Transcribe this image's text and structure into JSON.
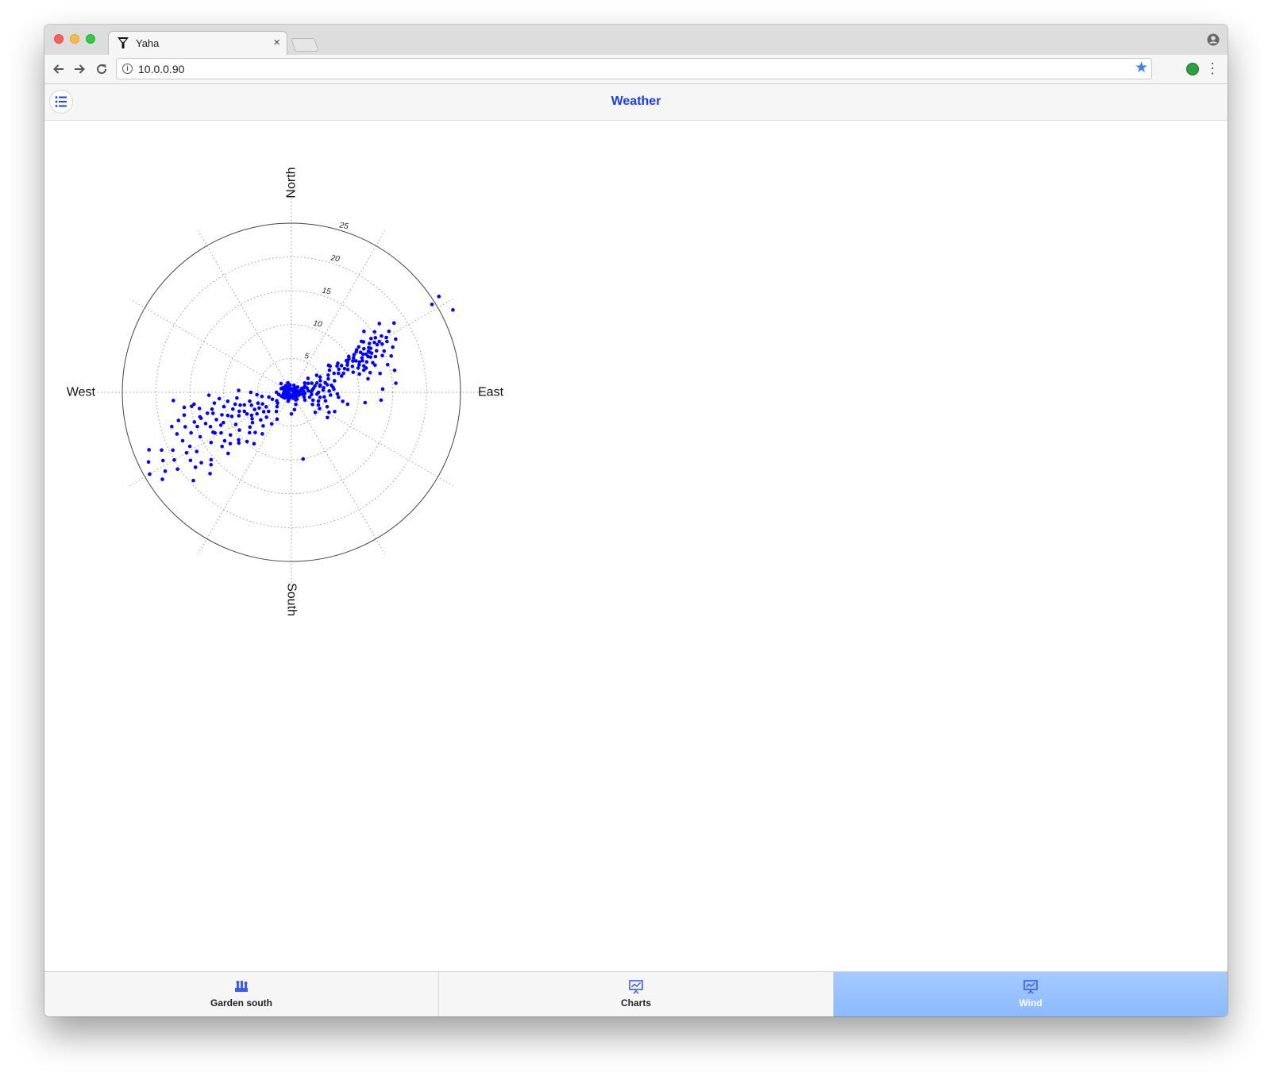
{
  "browser": {
    "tab_title": "Yaha",
    "tab_close": "×",
    "url": "10.0.0.90"
  },
  "app": {
    "title": "Weather",
    "accent_color": "#1a3ff0",
    "active_tab_color": "#99c3ff"
  },
  "bottom_tabs": [
    {
      "label": "Garden south",
      "icon": "garden-icon",
      "active": false
    },
    {
      "label": "Charts",
      "icon": "presentation-chart-icon",
      "active": false
    },
    {
      "label": "Wind",
      "icon": "presentation-chart-icon",
      "active": true
    }
  ],
  "chart_data": {
    "type": "scatter",
    "coordinate_system": "polar",
    "angle_unit": "degrees (direction the wind blows from, clockwise from North)",
    "compass_labels": [
      "North",
      "East",
      "South",
      "West"
    ],
    "radial_ticks": [
      5,
      10,
      15,
      20,
      25
    ],
    "radial_range": [
      0,
      25
    ],
    "angular_grid_step_deg": 30,
    "grid": "dotted",
    "point_color": "#0000ff",
    "points": [
      [
        58,
        24.5
      ],
      [
        57,
        26
      ],
      [
        63,
        26.8
      ],
      [
        58,
        17
      ],
      [
        52,
        16.5
      ],
      [
        60,
        15
      ],
      [
        62,
        16
      ],
      [
        64,
        14
      ],
      [
        50,
        14
      ],
      [
        55,
        13
      ],
      [
        65,
        12.5
      ],
      [
        68,
        14.5
      ],
      [
        59,
        14.3
      ],
      [
        61,
        13.4
      ],
      [
        56,
        12
      ],
      [
        57,
        11.5
      ],
      [
        63,
        13
      ],
      [
        66,
        15
      ],
      [
        62,
        12
      ],
      [
        59,
        12.5
      ],
      [
        60,
        11.8
      ],
      [
        61,
        14.5
      ],
      [
        63,
        12.4
      ],
      [
        64,
        11.6
      ],
      [
        67,
        13.5
      ],
      [
        58,
        13.6
      ],
      [
        57,
        14.8
      ],
      [
        54,
        12.8
      ],
      [
        56,
        14.2
      ],
      [
        60,
        13.2
      ],
      [
        62,
        12.9
      ],
      [
        64,
        13.2
      ],
      [
        66,
        12.8
      ],
      [
        59,
        10.8
      ],
      [
        61,
        10.5
      ],
      [
        63,
        10.2
      ],
      [
        66,
        11
      ],
      [
        68,
        12
      ],
      [
        70,
        12.8
      ],
      [
        72,
        11.6
      ],
      [
        58,
        10
      ],
      [
        60,
        9.8
      ],
      [
        62,
        9.4
      ],
      [
        64,
        9.2
      ],
      [
        67,
        9.8
      ],
      [
        70,
        10.5
      ],
      [
        73,
        11.2
      ],
      [
        76,
        12
      ],
      [
        78,
        13.4
      ],
      [
        66,
        8.6
      ],
      [
        68,
        9
      ],
      [
        72,
        9.6
      ],
      [
        75,
        10.4
      ],
      [
        80,
        11.5
      ],
      [
        85,
        15.5
      ],
      [
        88,
        13.5
      ],
      [
        95,
        13.3
      ],
      [
        98,
        11
      ],
      [
        100,
        7.7
      ],
      [
        102,
        8.5
      ],
      [
        96,
        7
      ],
      [
        92,
        6.8
      ],
      [
        94,
        5.8
      ],
      [
        86,
        6.3
      ],
      [
        88,
        5.6
      ],
      [
        83,
        6.2
      ],
      [
        80,
        6
      ],
      [
        78,
        5.4
      ],
      [
        75,
        6.6
      ],
      [
        72,
        7.8
      ],
      [
        70,
        8.2
      ],
      [
        68,
        7.5
      ],
      [
        66,
        6.9
      ],
      [
        64,
        7.8
      ],
      [
        62,
        8.4
      ],
      [
        60,
        7.8
      ],
      [
        58,
        8.1
      ],
      [
        56,
        6.9
      ],
      [
        54,
        6.8
      ],
      [
        60,
        6.5
      ],
      [
        65,
        6
      ],
      [
        70,
        5.8
      ],
      [
        74,
        5.2
      ],
      [
        78,
        4.3
      ],
      [
        82,
        4.8
      ],
      [
        86,
        4.7
      ],
      [
        90,
        4
      ],
      [
        94,
        3.8
      ],
      [
        96,
        3
      ],
      [
        100,
        4.3
      ],
      [
        105,
        2.8
      ],
      [
        110,
        3.4
      ],
      [
        120,
        3.6
      ],
      [
        120,
        4.8
      ],
      [
        115,
        4.4
      ],
      [
        85,
        2.5
      ],
      [
        80,
        3.3
      ],
      [
        75,
        3.6
      ],
      [
        70,
        4
      ],
      [
        66,
        3.3
      ],
      [
        62,
        2.8
      ],
      [
        55,
        2.4
      ],
      [
        50,
        3.2
      ],
      [
        70,
        2
      ],
      [
        80,
        1.4
      ],
      [
        90,
        1.2
      ],
      [
        95,
        2
      ],
      [
        100,
        1.6
      ],
      [
        110,
        2
      ],
      [
        120,
        2.3
      ],
      [
        100,
        0.8
      ],
      [
        110,
        0.9
      ],
      [
        120,
        1
      ],
      [
        150,
        1.3
      ],
      [
        160,
        1.9
      ],
      [
        170,
        2.6
      ],
      [
        180,
        3.2
      ],
      [
        170,
        10
      ],
      [
        240,
        12
      ],
      [
        245,
        11.5
      ],
      [
        250,
        10
      ],
      [
        246,
        8.5
      ],
      [
        248,
        9.5
      ],
      [
        252,
        10.8
      ],
      [
        255,
        12
      ],
      [
        240,
        9.5
      ],
      [
        243,
        13
      ],
      [
        238,
        14
      ],
      [
        244,
        15
      ],
      [
        248,
        16
      ],
      [
        242,
        17
      ],
      [
        236,
        18
      ],
      [
        240,
        20
      ],
      [
        242,
        21.5
      ],
      [
        238,
        22
      ],
      [
        246,
        21
      ],
      [
        244,
        19.5
      ],
      [
        250,
        18
      ],
      [
        252,
        16.5
      ],
      [
        255,
        14
      ],
      [
        258,
        12
      ],
      [
        250,
        13.5
      ],
      [
        253,
        15
      ],
      [
        247,
        13
      ],
      [
        235,
        11
      ],
      [
        232,
        13
      ],
      [
        230,
        15.5
      ],
      [
        228,
        16
      ],
      [
        232,
        18
      ],
      [
        225,
        17
      ],
      [
        226,
        13
      ],
      [
        228,
        10.5
      ],
      [
        234,
        9.5
      ],
      [
        230,
        8
      ],
      [
        236,
        7
      ],
      [
        240,
        6.8
      ],
      [
        245,
        6
      ],
      [
        248,
        7.5
      ],
      [
        252,
        6.2
      ],
      [
        255,
        7.2
      ],
      [
        258,
        8.5
      ],
      [
        262,
        9.5
      ],
      [
        265,
        10.7
      ],
      [
        258,
        10.2
      ],
      [
        254,
        9
      ],
      [
        256,
        12.8
      ],
      [
        260,
        13.8
      ],
      [
        263,
        14.5
      ],
      [
        262,
        16
      ],
      [
        266,
        17.5
      ],
      [
        262,
        11.5
      ],
      [
        268,
        12.2
      ],
      [
        264,
        8.1
      ],
      [
        258,
        6.3
      ],
      [
        252,
        5.2
      ],
      [
        248,
        4.6
      ],
      [
        244,
        5.3
      ],
      [
        240,
        4.3
      ],
      [
        235,
        5
      ],
      [
        230,
        4.4
      ],
      [
        225,
        5.2
      ],
      [
        220,
        6.5
      ],
      [
        215,
        7.5
      ],
      [
        212,
        5.5
      ],
      [
        208,
        4.5
      ],
      [
        218,
        3.6
      ],
      [
        225,
        3
      ],
      [
        232,
        2.6
      ],
      [
        240,
        2.5
      ],
      [
        250,
        3
      ],
      [
        258,
        3.4
      ],
      [
        262,
        4.4
      ],
      [
        266,
        5.1
      ],
      [
        270,
        6
      ],
      [
        272,
        7.8
      ],
      [
        270,
        2.2
      ],
      [
        260,
        1.9
      ],
      [
        250,
        1.6
      ],
      [
        240,
        1.4
      ],
      [
        230,
        1.1
      ],
      [
        220,
        1
      ],
      [
        200,
        1.2
      ],
      [
        265,
        1
      ],
      [
        280,
        1.1
      ],
      [
        290,
        1.6
      ],
      [
        300,
        1.4
      ],
      [
        310,
        2
      ],
      [
        320,
        1.2
      ],
      [
        330,
        1
      ],
      [
        340,
        1.5
      ],
      [
        30,
        0.6
      ],
      [
        60,
        0.6
      ],
      [
        90,
        0.4
      ],
      [
        120,
        0.5
      ],
      [
        150,
        0.4
      ],
      [
        180,
        0.6
      ],
      [
        210,
        0.5
      ],
      [
        240,
        0.4
      ],
      [
        270,
        0.5
      ],
      [
        300,
        0.6
      ],
      [
        330,
        0.5
      ],
      [
        0,
        0.3
      ],
      [
        45,
        0.9
      ],
      [
        75,
        0.8
      ],
      [
        105,
        0.7
      ],
      [
        135,
        0.8
      ],
      [
        165,
        0.9
      ],
      [
        195,
        0.8
      ],
      [
        225,
        0.8
      ],
      [
        255,
        0.9
      ],
      [
        285,
        0.8
      ],
      [
        315,
        0.9
      ],
      [
        345,
        0.7
      ],
      [
        20,
        1.1
      ],
      [
        50,
        1.2
      ],
      [
        80,
        1.1
      ],
      [
        110,
        1.2
      ],
      [
        140,
        1.3
      ],
      [
        200,
        1.4
      ],
      [
        230,
        1.3
      ],
      [
        260,
        1.2
      ],
      [
        290,
        1.1
      ],
      [
        320,
        1.3
      ],
      [
        350,
        1.1
      ],
      [
        70,
        1.6
      ],
      [
        85,
        1.8
      ],
      [
        75,
        2.4
      ],
      [
        65,
        2.2
      ],
      [
        56,
        4.5
      ],
      [
        62,
        4.8
      ],
      [
        68,
        4.6
      ],
      [
        76,
        4.4
      ],
      [
        88,
        2.9
      ],
      [
        92,
        1.9
      ],
      [
        84,
        3.1
      ],
      [
        98,
        4.9
      ],
      [
        104,
        5.2
      ],
      [
        112,
        5.7
      ],
      [
        118,
        6.3
      ],
      [
        108,
        4.2
      ],
      [
        130,
        4.6
      ],
      [
        125,
        6.5
      ],
      [
        114,
        7
      ],
      [
        60,
        9.4
      ],
      [
        64,
        10.6
      ],
      [
        58,
        11.3
      ],
      [
        66,
        11.5
      ],
      [
        68,
        10.8
      ],
      [
        70,
        11.4
      ],
      [
        72,
        13
      ],
      [
        62,
        15.2
      ],
      [
        58,
        15.7
      ],
      [
        54,
        15.2
      ],
      [
        60,
        16.2
      ],
      [
        63,
        17.3
      ],
      [
        56,
        18.3
      ],
      [
        74,
        14.8
      ],
      [
        78,
        15.6
      ],
      [
        66,
        16.4
      ],
      [
        70,
        15.7
      ],
      [
        238,
        6
      ],
      [
        244,
        7.3
      ],
      [
        250,
        8.2
      ],
      [
        256,
        7.8
      ],
      [
        234,
        12.2
      ],
      [
        238,
        16.5
      ],
      [
        232,
        16.9
      ],
      [
        236,
        20.3
      ],
      [
        228,
        19.5
      ],
      [
        240,
        17.9
      ],
      [
        246,
        17.6
      ],
      [
        250,
        14.8
      ],
      [
        254,
        18.4
      ],
      [
        258,
        16.2
      ],
      [
        262,
        14.9
      ],
      [
        256,
        17.2
      ],
      [
        248,
        22.7
      ],
      [
        244,
        23.5
      ],
      [
        240,
        24.2
      ],
      [
        236,
        23
      ],
      [
        242,
        12.8
      ],
      [
        246,
        11
      ],
      [
        250,
        11.8
      ],
      [
        254,
        13.9
      ],
      [
        230,
        11.8
      ],
      [
        226,
        10.8
      ],
      [
        222,
        9.8
      ],
      [
        226,
        8.6
      ],
      [
        232,
        7.3
      ],
      [
        222,
        8
      ],
      [
        216,
        9.4
      ],
      [
        228,
        6.1
      ]
    ]
  }
}
